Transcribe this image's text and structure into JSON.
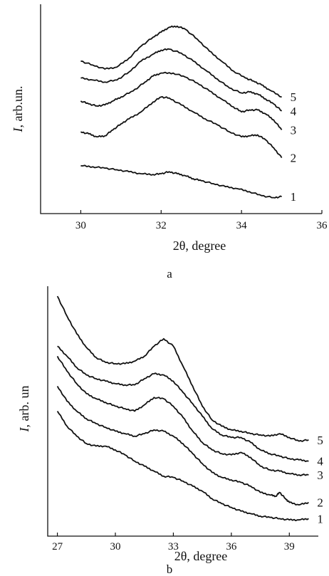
{
  "chart_data": [
    {
      "type": "line",
      "panel_label": "a",
      "xlabel": "2θ, degree",
      "ylabel_var": "I",
      "ylabel_rest": ", arb.un.",
      "xlim": [
        29,
        36
      ],
      "xticks": [
        30,
        32,
        34,
        36
      ],
      "ylim": [
        0,
        1
      ],
      "grid": false,
      "legend": "curve numbers at right end of each line",
      "series": [
        {
          "name": "1",
          "points": [
            [
              30.0,
              0.24
            ],
            [
              30.3,
              0.235
            ],
            [
              30.6,
              0.228
            ],
            [
              30.9,
              0.22
            ],
            [
              31.2,
              0.21
            ],
            [
              31.5,
              0.2
            ],
            [
              31.8,
              0.196
            ],
            [
              32.0,
              0.2
            ],
            [
              32.2,
              0.21
            ],
            [
              32.4,
              0.2
            ],
            [
              32.6,
              0.19
            ],
            [
              32.8,
              0.175
            ],
            [
              33.0,
              0.165
            ],
            [
              33.3,
              0.15
            ],
            [
              33.6,
              0.135
            ],
            [
              33.9,
              0.125
            ],
            [
              34.2,
              0.11
            ],
            [
              34.5,
              0.09
            ],
            [
              34.8,
              0.08
            ],
            [
              35.0,
              0.085
            ]
          ]
        },
        {
          "name": "2",
          "points": [
            [
              30.0,
              0.41
            ],
            [
              30.2,
              0.4
            ],
            [
              30.4,
              0.385
            ],
            [
              30.6,
              0.39
            ],
            [
              30.8,
              0.42
            ],
            [
              31.0,
              0.45
            ],
            [
              31.2,
              0.475
            ],
            [
              31.5,
              0.51
            ],
            [
              31.8,
              0.56
            ],
            [
              32.0,
              0.585
            ],
            [
              32.2,
              0.58
            ],
            [
              32.5,
              0.545
            ],
            [
              32.8,
              0.51
            ],
            [
              33.1,
              0.475
            ],
            [
              33.4,
              0.445
            ],
            [
              33.7,
              0.41
            ],
            [
              34.0,
              0.385
            ],
            [
              34.2,
              0.39
            ],
            [
              34.4,
              0.395
            ],
            [
              34.6,
              0.37
            ],
            [
              34.8,
              0.33
            ],
            [
              35.0,
              0.28
            ]
          ]
        },
        {
          "name": "3",
          "points": [
            [
              30.0,
              0.565
            ],
            [
              30.2,
              0.55
            ],
            [
              30.4,
              0.54
            ],
            [
              30.6,
              0.545
            ],
            [
              30.8,
              0.565
            ],
            [
              31.0,
              0.585
            ],
            [
              31.3,
              0.615
            ],
            [
              31.6,
              0.66
            ],
            [
              31.8,
              0.69
            ],
            [
              32.0,
              0.705
            ],
            [
              32.3,
              0.705
            ],
            [
              32.6,
              0.685
            ],
            [
              32.9,
              0.655
            ],
            [
              33.2,
              0.615
            ],
            [
              33.5,
              0.575
            ],
            [
              33.8,
              0.535
            ],
            [
              34.0,
              0.51
            ],
            [
              34.2,
              0.52
            ],
            [
              34.4,
              0.52
            ],
            [
              34.6,
              0.5
            ],
            [
              34.8,
              0.47
            ],
            [
              35.0,
              0.42
            ]
          ]
        },
        {
          "name": "4",
          "points": [
            [
              30.0,
              0.68
            ],
            [
              30.3,
              0.67
            ],
            [
              30.6,
              0.66
            ],
            [
              30.9,
              0.67
            ],
            [
              31.2,
              0.71
            ],
            [
              31.5,
              0.765
            ],
            [
              31.8,
              0.8
            ],
            [
              32.0,
              0.82
            ],
            [
              32.2,
              0.825
            ],
            [
              32.5,
              0.805
            ],
            [
              32.8,
              0.765
            ],
            [
              33.1,
              0.72
            ],
            [
              33.4,
              0.675
            ],
            [
              33.7,
              0.63
            ],
            [
              34.0,
              0.605
            ],
            [
              34.2,
              0.61
            ],
            [
              34.4,
              0.6
            ],
            [
              34.6,
              0.575
            ],
            [
              34.8,
              0.55
            ],
            [
              35.0,
              0.515
            ]
          ]
        },
        {
          "name": "5",
          "points": [
            [
              30.0,
              0.765
            ],
            [
              30.3,
              0.745
            ],
            [
              30.6,
              0.725
            ],
            [
              30.9,
              0.735
            ],
            [
              31.2,
              0.78
            ],
            [
              31.5,
              0.84
            ],
            [
              31.8,
              0.885
            ],
            [
              32.0,
              0.91
            ],
            [
              32.2,
              0.935
            ],
            [
              32.4,
              0.94
            ],
            [
              32.6,
              0.925
            ],
            [
              32.9,
              0.875
            ],
            [
              33.2,
              0.815
            ],
            [
              33.5,
              0.765
            ],
            [
              33.8,
              0.715
            ],
            [
              34.1,
              0.68
            ],
            [
              34.3,
              0.665
            ],
            [
              34.5,
              0.645
            ],
            [
              34.7,
              0.62
            ],
            [
              35.0,
              0.585
            ]
          ]
        }
      ]
    },
    {
      "type": "line",
      "panel_label": "b",
      "xlabel": "2θ, degree",
      "ylabel_var": "I",
      "ylabel_rest": ", arb. un",
      "xlim": [
        26.5,
        40.5
      ],
      "xticks": [
        27,
        30,
        33,
        36,
        39
      ],
      "ylim": [
        0,
        1
      ],
      "grid": false,
      "legend": "curve numbers at right end of each line",
      "series": [
        {
          "name": "1",
          "points": [
            [
              27.0,
              0.5
            ],
            [
              27.5,
              0.44
            ],
            [
              28.0,
              0.4
            ],
            [
              28.5,
              0.37
            ],
            [
              29.0,
              0.36
            ],
            [
              29.5,
              0.36
            ],
            [
              30.0,
              0.345
            ],
            [
              30.5,
              0.325
            ],
            [
              31.0,
              0.3
            ],
            [
              31.5,
              0.28
            ],
            [
              32.0,
              0.26
            ],
            [
              32.5,
              0.24
            ],
            [
              33.0,
              0.235
            ],
            [
              33.5,
              0.22
            ],
            [
              34.0,
              0.2
            ],
            [
              34.5,
              0.18
            ],
            [
              35.0,
              0.15
            ],
            [
              35.5,
              0.13
            ],
            [
              36.0,
              0.115
            ],
            [
              36.5,
              0.1
            ],
            [
              37.0,
              0.09
            ],
            [
              37.5,
              0.08
            ],
            [
              38.0,
              0.075
            ],
            [
              38.5,
              0.07
            ],
            [
              39.0,
              0.065
            ],
            [
              39.5,
              0.065
            ],
            [
              40.0,
              0.07
            ]
          ]
        },
        {
          "name": "2",
          "points": [
            [
              27.0,
              0.6
            ],
            [
              27.5,
              0.54
            ],
            [
              28.0,
              0.5
            ],
            [
              28.5,
              0.47
            ],
            [
              29.0,
              0.45
            ],
            [
              29.5,
              0.435
            ],
            [
              30.0,
              0.42
            ],
            [
              30.5,
              0.41
            ],
            [
              31.0,
              0.4
            ],
            [
              31.5,
              0.41
            ],
            [
              32.0,
              0.425
            ],
            [
              32.5,
              0.42
            ],
            [
              33.0,
              0.4
            ],
            [
              33.5,
              0.37
            ],
            [
              34.0,
              0.33
            ],
            [
              34.5,
              0.29
            ],
            [
              35.0,
              0.255
            ],
            [
              35.5,
              0.235
            ],
            [
              36.0,
              0.225
            ],
            [
              36.5,
              0.215
            ],
            [
              37.0,
              0.2
            ],
            [
              37.5,
              0.175
            ],
            [
              38.0,
              0.165
            ],
            [
              38.3,
              0.16
            ],
            [
              38.5,
              0.175
            ],
            [
              38.8,
              0.15
            ],
            [
              39.0,
              0.135
            ],
            [
              39.5,
              0.125
            ],
            [
              40.0,
              0.135
            ]
          ]
        },
        {
          "name": "3",
          "points": [
            [
              27.0,
              0.72
            ],
            [
              27.5,
              0.66
            ],
            [
              28.0,
              0.61
            ],
            [
              28.5,
              0.57
            ],
            [
              29.0,
              0.55
            ],
            [
              29.5,
              0.535
            ],
            [
              30.0,
              0.52
            ],
            [
              30.5,
              0.51
            ],
            [
              31.0,
              0.5
            ],
            [
              31.5,
              0.525
            ],
            [
              32.0,
              0.555
            ],
            [
              32.5,
              0.55
            ],
            [
              33.0,
              0.52
            ],
            [
              33.5,
              0.475
            ],
            [
              34.0,
              0.42
            ],
            [
              34.5,
              0.375
            ],
            [
              35.0,
              0.345
            ],
            [
              35.5,
              0.33
            ],
            [
              36.0,
              0.325
            ],
            [
              36.5,
              0.335
            ],
            [
              37.0,
              0.315
            ],
            [
              37.5,
              0.28
            ],
            [
              38.0,
              0.265
            ],
            [
              38.5,
              0.26
            ],
            [
              39.0,
              0.25
            ],
            [
              39.5,
              0.245
            ],
            [
              40.0,
              0.245
            ]
          ]
        },
        {
          "name": "4",
          "points": [
            [
              27.0,
              0.76
            ],
            [
              27.5,
              0.72
            ],
            [
              28.0,
              0.675
            ],
            [
              28.5,
              0.645
            ],
            [
              29.0,
              0.63
            ],
            [
              29.5,
              0.62
            ],
            [
              30.0,
              0.61
            ],
            [
              30.5,
              0.605
            ],
            [
              31.0,
              0.605
            ],
            [
              31.5,
              0.63
            ],
            [
              32.0,
              0.65
            ],
            [
              32.5,
              0.645
            ],
            [
              33.0,
              0.62
            ],
            [
              33.5,
              0.575
            ],
            [
              34.0,
              0.53
            ],
            [
              34.5,
              0.48
            ],
            [
              35.0,
              0.43
            ],
            [
              35.5,
              0.405
            ],
            [
              36.0,
              0.395
            ],
            [
              36.5,
              0.395
            ],
            [
              37.0,
              0.375
            ],
            [
              37.5,
              0.345
            ],
            [
              38.0,
              0.33
            ],
            [
              38.5,
              0.32
            ],
            [
              39.0,
              0.31
            ],
            [
              39.5,
              0.305
            ],
            [
              40.0,
              0.3
            ]
          ]
        },
        {
          "name": "5",
          "points": [
            [
              27.0,
              0.96
            ],
            [
              27.5,
              0.88
            ],
            [
              28.0,
              0.81
            ],
            [
              28.5,
              0.755
            ],
            [
              29.0,
              0.715
            ],
            [
              29.5,
              0.695
            ],
            [
              30.0,
              0.69
            ],
            [
              30.5,
              0.69
            ],
            [
              31.0,
              0.7
            ],
            [
              31.5,
              0.72
            ],
            [
              32.0,
              0.76
            ],
            [
              32.5,
              0.79
            ],
            [
              33.0,
              0.76
            ],
            [
              33.5,
              0.68
            ],
            [
              34.0,
              0.6
            ],
            [
              34.5,
              0.52
            ],
            [
              35.0,
              0.465
            ],
            [
              35.5,
              0.44
            ],
            [
              36.0,
              0.425
            ],
            [
              36.5,
              0.42
            ],
            [
              37.0,
              0.41
            ],
            [
              37.5,
              0.405
            ],
            [
              38.0,
              0.4
            ],
            [
              38.5,
              0.41
            ],
            [
              39.0,
              0.395
            ],
            [
              39.5,
              0.38
            ],
            [
              40.0,
              0.385
            ]
          ]
        }
      ]
    }
  ]
}
